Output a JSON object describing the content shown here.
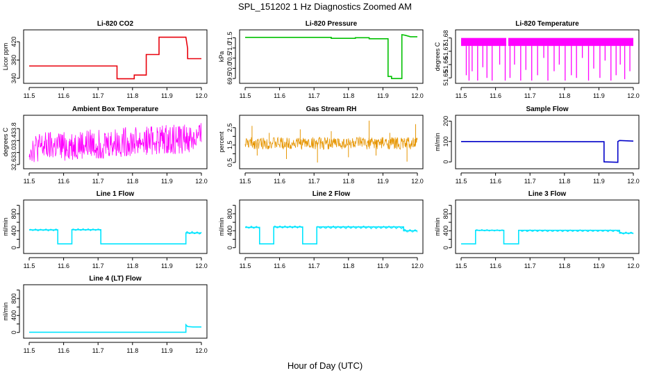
{
  "figure": {
    "title": "SPL_151202  1 Hz Diagnostics Zoomed AM",
    "xlabel": "Hour of Day (UTC)"
  },
  "chart_data": [
    {
      "type": "line",
      "title": "Li-820 CO2",
      "ylabel": "Licor ppm",
      "color": "#e8000b",
      "xlim": [
        11.5,
        12.0
      ],
      "ylim": [
        335,
        440
      ],
      "xticks": [
        "11.5",
        "11.6",
        "11.7",
        "11.8",
        "11.9",
        "12.0"
      ],
      "yticks": [
        "340",
        "380",
        "420"
      ],
      "ytick_values": [
        340,
        380,
        420
      ],
      "series": [
        {
          "x": [
            11.5,
            11.755,
            11.755,
            11.805,
            11.805,
            11.84,
            11.84,
            11.877,
            11.877,
            11.955,
            11.96,
            11.96,
            12.0
          ],
          "y": [
            367,
            367,
            339,
            339,
            347,
            347,
            392,
            392,
            430,
            430,
            405,
            383,
            383
          ]
        }
      ]
    },
    {
      "type": "line",
      "title": "Li-820 Pressure",
      "ylabel": "kPa",
      "color": "#00c000",
      "xlim": [
        11.5,
        12.0
      ],
      "ylim": [
        69.4,
        71.75
      ],
      "xticks": [
        "11.5",
        "11.6",
        "11.7",
        "11.8",
        "11.9",
        "12.0"
      ],
      "yticks": [
        "69.5",
        "70.0",
        "70.5",
        "71.0",
        "71.5"
      ],
      "ytick_values": [
        69.5,
        70.0,
        70.5,
        71.0,
        71.5
      ],
      "series": [
        {
          "x": [
            11.5,
            11.75,
            11.75,
            11.82,
            11.82,
            11.86,
            11.86,
            11.915,
            11.915,
            11.925,
            11.925,
            11.955,
            11.955,
            11.965,
            11.98,
            12.0
          ],
          "y": [
            71.52,
            71.52,
            71.47,
            71.47,
            71.5,
            71.5,
            71.45,
            71.45,
            69.6,
            69.6,
            69.5,
            69.5,
            71.65,
            71.62,
            71.55,
            71.55
          ]
        }
      ]
    },
    {
      "type": "line",
      "title": "Li-820 Temperature",
      "ylabel": "degrees C",
      "color": "#ff00ff",
      "xlim": [
        11.5,
        12.0
      ],
      "ylim": [
        51.648,
        51.684
      ],
      "xticks": [
        "11.5",
        "11.6",
        "11.7",
        "11.8",
        "11.9",
        "12.0"
      ],
      "yticks": [
        "51.65",
        "51.66",
        "51.67",
        "51.68"
      ],
      "ytick_values": [
        51.65,
        51.66,
        51.67,
        51.68
      ],
      "band": {
        "lo": 51.674,
        "hi": 51.68
      },
      "gaps": [
        11.634
      ],
      "spikes": [
        [
          11.515,
          51.652
        ],
        [
          11.523,
          51.648
        ],
        [
          11.532,
          51.655
        ],
        [
          11.548,
          51.648
        ],
        [
          11.563,
          51.658
        ],
        [
          11.575,
          51.65
        ],
        [
          11.59,
          51.648
        ],
        [
          11.612,
          51.66
        ],
        [
          11.628,
          51.648
        ],
        [
          11.642,
          51.65
        ],
        [
          11.655,
          51.66
        ],
        [
          11.673,
          51.648
        ],
        [
          11.688,
          51.656
        ],
        [
          11.705,
          51.648
        ],
        [
          11.722,
          51.652
        ],
        [
          11.74,
          51.665
        ],
        [
          11.752,
          51.648
        ],
        [
          11.77,
          51.655
        ],
        [
          11.785,
          51.66
        ],
        [
          11.802,
          51.648
        ],
        [
          11.82,
          51.652
        ],
        [
          11.835,
          51.65
        ],
        [
          11.852,
          51.665
        ],
        [
          11.87,
          51.648
        ],
        [
          11.885,
          51.657
        ],
        [
          11.903,
          51.65
        ],
        [
          11.918,
          51.663
        ],
        [
          11.935,
          51.648
        ],
        [
          11.95,
          51.652
        ],
        [
          11.962,
          51.66
        ],
        [
          11.975,
          51.649
        ],
        [
          11.99,
          51.655
        ]
      ]
    },
    {
      "type": "line",
      "title": "Ambient Box Temperature",
      "ylabel": "degrees C",
      "color": "#ff00ff",
      "xlim": [
        11.5,
        12.0
      ],
      "ylim": [
        32.55,
        34.15
      ],
      "xticks": [
        "11.5",
        "11.6",
        "11.7",
        "11.8",
        "11.9",
        "12.0"
      ],
      "yticks": [
        "32.6",
        "33.0",
        "33.4",
        "33.8"
      ],
      "ytick_values": [
        32.6,
        33.0,
        33.4,
        33.8
      ],
      "noise": {
        "base_start": 33.15,
        "base_end": 33.5,
        "amp": 0.5,
        "n": 420
      }
    },
    {
      "type": "line",
      "title": "Gas Stream RH",
      "ylabel": "percent",
      "color": "#e69500",
      "xlim": [
        11.5,
        12.0
      ],
      "ylim": [
        0.3,
        3.05
      ],
      "xticks": [
        "11.5",
        "11.6",
        "11.7",
        "11.8",
        "11.9",
        "12.0"
      ],
      "yticks": [
        "0.5",
        "1.5",
        "2.5"
      ],
      "ytick_values": [
        0.5,
        1.5,
        2.5
      ],
      "yticks_minor": [
        "1.0",
        "2.0"
      ],
      "ytick_minor_values": [
        1.0,
        2.0
      ],
      "noise": {
        "base_start": 1.6,
        "base_end": 1.6,
        "amp": 0.35,
        "n": 420
      },
      "outliers": [
        [
          11.52,
          2.6
        ],
        [
          11.535,
          0.9
        ],
        [
          11.57,
          2.2
        ],
        [
          11.62,
          0.7
        ],
        [
          11.66,
          2.4
        ],
        [
          11.71,
          0.5
        ],
        [
          11.75,
          2.3
        ],
        [
          11.8,
          0.8
        ],
        [
          11.86,
          2.9
        ],
        [
          11.88,
          0.9
        ],
        [
          11.92,
          2.2
        ],
        [
          11.97,
          0.55
        ],
        [
          11.995,
          2.7
        ]
      ]
    },
    {
      "type": "line",
      "title": "Sample Flow",
      "ylabel": "ml/min",
      "color": "#0000c8",
      "xlim": [
        11.5,
        12.0
      ],
      "ylim": [
        -20,
        215
      ],
      "xticks": [
        "11.5",
        "11.6",
        "11.7",
        "11.8",
        "11.9",
        "12.0"
      ],
      "yticks": [
        "0",
        "100",
        "200"
      ],
      "ytick_values": [
        0,
        100,
        200
      ],
      "series": [
        {
          "x": [
            11.5,
            11.915,
            11.915,
            11.955,
            11.955,
            11.96,
            12.0
          ],
          "y": [
            100,
            99,
            0,
            -2,
            100,
            105,
            102
          ]
        }
      ]
    },
    {
      "type": "line",
      "title": "Line 1 Flow",
      "ylabel": "ml/min",
      "color": "#00e5ff",
      "xlim": [
        11.5,
        12.0
      ],
      "ylim": [
        -70,
        1060
      ],
      "xticks": [
        "11.5",
        "11.6",
        "11.7",
        "11.8",
        "11.9",
        "12.0"
      ],
      "yticks": [
        "0",
        "400",
        "800"
      ],
      "ytick_values": [
        0,
        400,
        800
      ],
      "yticks_minor": [
        "200",
        "600",
        "1000"
      ],
      "ytick_minor_values": [
        200,
        600,
        1000
      ],
      "series": [
        {
          "x": [
            11.5,
            11.583,
            11.583,
            11.624,
            11.624,
            11.708,
            11.708,
            11.955,
            11.955,
            12.0
          ],
          "y": [
            420,
            420,
            90,
            90,
            425,
            425,
            90,
            90,
            350,
            350
          ]
        }
      ],
      "wiggle": [
        [
          11.5,
          11.583,
          420,
          25
        ],
        [
          11.624,
          11.708,
          425,
          25
        ],
        [
          11.955,
          12.0,
          350,
          35
        ]
      ]
    },
    {
      "type": "line",
      "title": "Line 2 Flow",
      "ylabel": "ml/min",
      "color": "#00e5ff",
      "xlim": [
        11.5,
        12.0
      ],
      "ylim": [
        -70,
        1060
      ],
      "xticks": [
        "11.5",
        "11.6",
        "11.7",
        "11.8",
        "11.9",
        "12.0"
      ],
      "yticks": [
        "0",
        "400",
        "800"
      ],
      "ytick_values": [
        0,
        400,
        800
      ],
      "yticks_minor": [
        "200",
        "600",
        "1000"
      ],
      "ytick_minor_values": [
        200,
        600,
        1000
      ],
      "series": [
        {
          "x": [
            11.5,
            11.542,
            11.542,
            11.583,
            11.583,
            11.667,
            11.667,
            11.708,
            11.708,
            11.96,
            11.96,
            12.0
          ],
          "y": [
            480,
            480,
            90,
            90,
            490,
            490,
            90,
            90,
            490,
            490,
            400,
            400
          ]
        }
      ],
      "wiggle": [
        [
          11.5,
          11.542,
          480,
          30
        ],
        [
          11.583,
          11.667,
          490,
          30
        ],
        [
          11.708,
          11.96,
          480,
          35
        ],
        [
          11.96,
          12.0,
          400,
          40
        ]
      ]
    },
    {
      "type": "line",
      "title": "Line 3 Flow",
      "ylabel": "ml/min",
      "color": "#00e5ff",
      "xlim": [
        11.5,
        12.0
      ],
      "ylim": [
        -70,
        1060
      ],
      "xticks": [
        "11.5",
        "11.6",
        "11.7",
        "11.8",
        "11.9",
        "12.0"
      ],
      "yticks": [
        "0",
        "400",
        "800"
      ],
      "ytick_values": [
        0,
        400,
        800
      ],
      "yticks_minor": [
        "200",
        "600",
        "1000"
      ],
      "ytick_minor_values": [
        200,
        600,
        1000
      ],
      "series": [
        {
          "x": [
            11.5,
            11.542,
            11.542,
            11.624,
            11.624,
            11.667,
            11.667,
            11.96,
            11.96,
            12.0
          ],
          "y": [
            90,
            90,
            410,
            410,
            90,
            90,
            410,
            410,
            345,
            345
          ]
        }
      ],
      "wiggle": [
        [
          11.542,
          11.624,
          410,
          20
        ],
        [
          11.667,
          11.96,
          400,
          25
        ],
        [
          11.96,
          12.0,
          345,
          30
        ]
      ]
    },
    {
      "type": "line",
      "title": "Line 4 (LT) Flow",
      "ylabel": "ml/min",
      "color": "#00e5ff",
      "xlim": [
        11.5,
        12.0
      ],
      "ylim": [
        -70,
        1060
      ],
      "xticks": [
        "11.5",
        "11.6",
        "11.7",
        "11.8",
        "11.9",
        "12.0"
      ],
      "yticks": [
        "0",
        "400",
        "800"
      ],
      "ytick_values": [
        0,
        400,
        800
      ],
      "yticks_minor": [
        "200",
        "600",
        "1000"
      ],
      "ytick_minor_values": [
        200,
        600,
        1000
      ],
      "series": [
        {
          "x": [
            11.5,
            11.955,
            11.955,
            11.96,
            11.975,
            12.0
          ],
          "y": [
            5,
            5,
            180,
            140,
            130,
            130
          ]
        }
      ]
    }
  ]
}
